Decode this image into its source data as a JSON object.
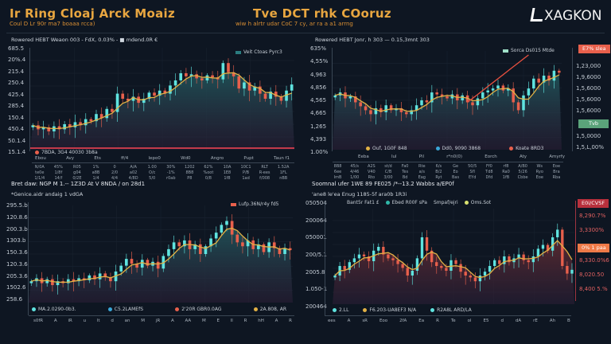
{
  "header": {
    "left_title": "Ir Ring Cloaj Arck Moaiz",
    "left_subtitle": "Coul D Lr 90r ma7 boaaa rcca)",
    "center_title": "Tve DCT rhk COoruz",
    "center_subtitle": "wiw h alrtr udar CoC 7 cy, ar ra a a1 arrng",
    "logo": "XAGKON"
  },
  "colors": {
    "background": "#0e1622",
    "bull": "#5fe3df",
    "bear": "#e8604c",
    "ma": "#e2b145",
    "area": "#1f5056",
    "trend": "#e8503f"
  },
  "charts": [
    {
      "caption": "Rowered HEBT Weaon 003 - FdX, 0.03% - ■ mdend.0R €",
      "yticks": [
        "685.5",
        "20%.4",
        "215.4",
        "250.4",
        "425.4",
        "285.4",
        "150.4",
        "450.4",
        "50.1.4",
        "15.1.4"
      ],
      "legend": [
        {
          "label": "Veit Ctoas Pyrc3",
          "color": "#5fe3df"
        }
      ],
      "bottom_legend": [
        {
          "label": "7BDA, 3G4 40030 3b8a",
          "color": "#e8604c"
        }
      ],
      "xticks": [
        "Ebou",
        "Avy",
        "Ets",
        "ff/4",
        "lepo0",
        "Wd0",
        "Angro",
        "Pupt",
        "Taun f1"
      ],
      "table": [
        [
          "N/0A",
          "45%",
          "R05",
          "1%",
          "0",
          "A/A",
          "1.00",
          "30%",
          "1202",
          "62%",
          "10A",
          "10C1",
          "RLT",
          "1.52A"
        ],
        [
          "te0e",
          "1/8f",
          "g04",
          "a8B",
          "2/0",
          "a02",
          "O/c",
          "-1%",
          "8B8",
          "%oot",
          "1E8",
          "P/B",
          "R-ees",
          "1FL"
        ],
        [
          "1/1/4",
          "14/f",
          "0/2E",
          "1/4",
          "4/4",
          "4/8D",
          "5/0",
          "r0ab",
          "P8",
          "0/8",
          "1f8",
          "1ad",
          "f/008",
          "nBB"
        ]
      ]
    },
    {
      "caption": "Rowered HEBT Jonr, h 303 — 0.15,3mnt 303",
      "yticks": [
        "635%",
        "4,55%",
        "4,963",
        "4,856",
        "4,565",
        "4,665",
        "1,265",
        "4,393",
        "1.00%"
      ],
      "right_ticks": [
        "1,23,000",
        "1,9,6000",
        "1,5,6000",
        "1,5,6000",
        "1,5,6000",
        "1,5,0000",
        "1,5,L,00%"
      ],
      "badge_top": "E7% slea",
      "badge_mid": "Tvb",
      "legend": [
        {
          "label": "Sorca Ds015 Mtde",
          "color": "#5fe3df"
        }
      ],
      "bottom_legend": [
        {
          "label": "Ouf, 1G0F 848",
          "color": "#e2b145"
        },
        {
          "label": "Dd0, 9090 3868",
          "color": "#3aa7d8"
        },
        {
          "label": "Koate 8RD3",
          "color": "#e8604c"
        }
      ],
      "xticks": [
        "Eeba",
        "Iul",
        "Pil",
        "r*n0(0)",
        "Eorch",
        "Aty",
        "Amyrfy"
      ],
      "table": [
        [
          "8B8",
          "45/s",
          "A2S",
          "st/d",
          "Fa0",
          "Rte",
          "6/s",
          "Ge",
          "50/5",
          "Ff0",
          "rf8",
          "A/B0",
          "Ws",
          "Eoe"
        ],
        [
          "6ee",
          "4/46",
          "V40",
          "C/B",
          "Tes",
          "a/s",
          "B/2",
          "Eo",
          "Sfl",
          "Td8",
          "Ra0",
          "5/26",
          "Ryo",
          "Bra"
        ],
        [
          "ImB",
          "1/00",
          "Rto",
          "3/00",
          "Bd",
          "Eag",
          "Ryt",
          "Bas",
          "EYd",
          "Dfd",
          "1fB",
          "Cbbe",
          "Eoe",
          "Rba"
        ]
      ]
    },
    {
      "caption": "Bret daw: NGP M 1.-- 1Z3D At V 8NDA / on 28d1",
      "subcaption": "*Genice.aidr andaig 1 vdGA",
      "yticks": [
        "295.5.b",
        "120.8.6",
        "200.3.b",
        "1303.b",
        "150.3.6",
        "120.3.6",
        "205.3.6",
        "1502.6",
        "258.6"
      ],
      "legend": [
        {
          "label": "Lufp.36N/r4y fd5",
          "color": "#e8604c"
        }
      ],
      "bottom_legend": [
        {
          "label": "MA.2.0290-0b3.",
          "color": "#5fe3df"
        },
        {
          "label": "C5.2LAMEfS",
          "color": "#3aa7d8"
        },
        {
          "label": "2'20R GBR0.0AG",
          "color": "#e8604c"
        },
        {
          "label": "2A.808, AR",
          "color": "#e2b145"
        }
      ],
      "xticks": [
        "s0fR",
        "A",
        "iR",
        "u",
        "lt",
        "d",
        "an",
        "M",
        "jR",
        "A",
        "AA",
        "M",
        "E",
        "ll",
        "R",
        "hH",
        "A",
        "R"
      ]
    },
    {
      "caption": "Soomnal ufer 1WE 89 FE025 /*--13.2 Wabbs a/EP0f",
      "subcaption": "'ane8 le'ea Enug 1185-5f ara0b 1R3i",
      "yticks": [
        "050504",
        "200064",
        "050001",
        "200/5.1",
        "2005.8",
        "1.050-1",
        "200464"
      ],
      "right_ticks": [
        "8,290.7%",
        "3,3300%",
        "8,330.0%6",
        "8,020.50",
        "8,400 5.%"
      ],
      "badge_top": "E0i/CVSF",
      "badge_mid": "0% 1 paa",
      "top_legend": [
        {
          "label": "Bant5r Fat1 £",
          "color": ""
        },
        {
          "label": "Ebed R00F sPa",
          "color": "#2fb8a8"
        },
        {
          "label": "Smpaf/ejri",
          "color": ""
        },
        {
          "label": "Oms.Sot",
          "color": "#d8e070"
        }
      ],
      "bottom_legend": [
        {
          "label": "2.LL",
          "color": "#5fe3df"
        },
        {
          "label": "F6.203-UA8EF3 N/A",
          "color": "#e2b145"
        },
        {
          "label": "R2A8L ARD/LA",
          "color": "#5fe3df"
        }
      ],
      "xticks": [
        "ees",
        "A",
        "sR",
        "Eoo",
        "2fA",
        "Ea",
        "R",
        "Te",
        "ol",
        "E5",
        "d",
        "dA",
        "rE",
        "Ah",
        "B"
      ]
    }
  ],
  "chart_data": [
    {
      "type": "candlestick",
      "ylim": [
        0,
        100
      ],
      "grid": true,
      "closes": [
        24,
        20,
        22,
        18,
        23,
        20,
        25,
        22,
        27,
        24,
        30,
        28,
        35,
        31,
        40,
        37,
        55,
        50,
        48,
        52,
        46,
        50,
        56,
        53,
        58,
        55,
        63,
        68,
        75,
        72,
        74,
        70,
        68,
        73,
        71,
        69,
        85,
        76,
        72,
        60,
        66,
        58,
        62,
        55,
        50,
        57,
        52,
        48,
        58,
        64
      ]
    },
    {
      "type": "candlestick",
      "ylim": [
        0,
        100
      ],
      "grid": true,
      "closes": [
        55,
        58,
        52,
        54,
        48,
        44,
        40,
        36,
        42,
        38,
        45,
        40,
        42,
        38,
        36,
        40,
        45,
        50,
        48,
        58,
        56,
        54,
        52,
        56,
        50,
        55,
        48,
        45,
        52,
        58,
        60,
        62,
        65,
        60,
        62,
        48,
        40,
        55,
        62,
        72,
        68,
        75,
        70,
        80,
        78
      ],
      "trend": [
        null,
        null,
        null,
        null,
        null,
        null,
        null,
        null,
        null,
        null,
        null,
        null,
        null,
        null,
        null,
        null,
        null,
        null,
        null,
        null,
        null,
        null,
        null,
        null,
        null,
        null,
        48,
        52,
        56,
        60,
        64,
        68,
        72,
        76,
        80,
        84,
        88,
        92,
        96,
        null,
        null,
        null,
        null,
        null,
        null
      ]
    },
    {
      "type": "candlestick",
      "ylim": [
        0,
        100
      ],
      "grid": true,
      "closes": [
        22,
        25,
        20,
        24,
        18,
        22,
        20,
        24,
        22,
        25,
        23,
        28,
        24,
        30,
        26,
        22,
        32,
        38,
        45,
        40,
        36,
        44,
        38,
        42,
        35,
        48,
        55,
        62,
        58,
        64,
        55,
        60,
        50,
        58,
        66,
        72,
        80,
        84,
        70,
        62,
        58,
        64,
        55,
        60,
        52,
        62,
        56,
        50,
        56,
        54
      ]
    },
    {
      "type": "candlestick",
      "ylim": [
        0,
        100
      ],
      "grid": true,
      "area_color": "#5a2a30",
      "closes": [
        30,
        40,
        36,
        44,
        48,
        52,
        50,
        45,
        56,
        60,
        52,
        48,
        46,
        42,
        38,
        30,
        35,
        48,
        70,
        56,
        44,
        40,
        38,
        35,
        46,
        42,
        34,
        30,
        28,
        24,
        30,
        34,
        40,
        46,
        42,
        50,
        44,
        48,
        52,
        46,
        44,
        50,
        58,
        62,
        56,
        70,
        78,
        40,
        32,
        36
      ]
    }
  ]
}
